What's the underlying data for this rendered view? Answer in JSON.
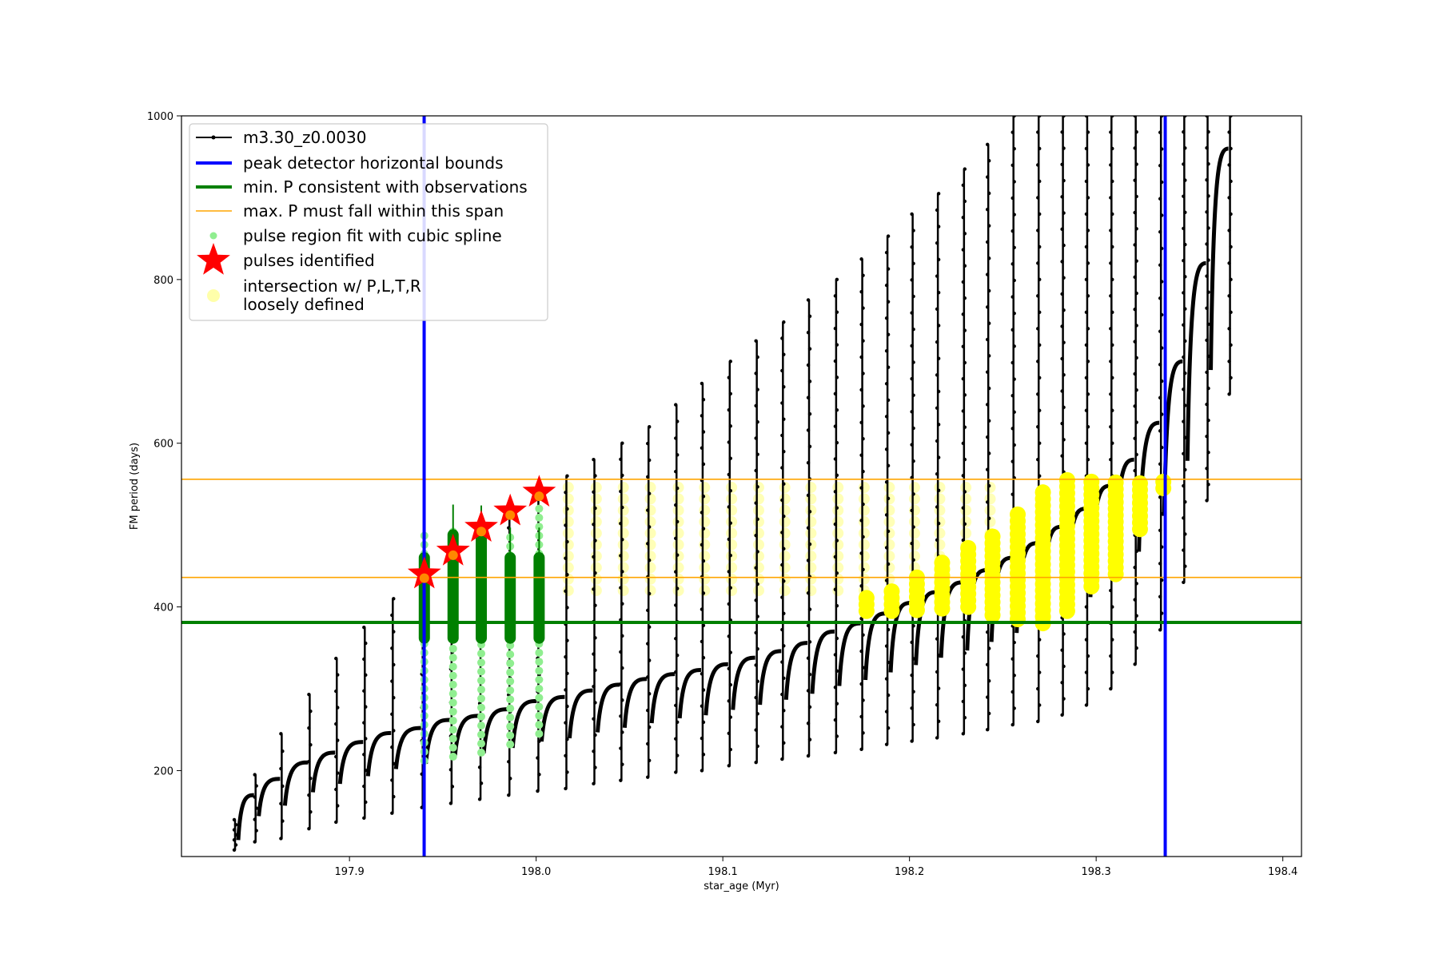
{
  "chart_data": {
    "type": "scatter",
    "title": "",
    "xlabel": "star_age (Myr)",
    "ylabel": "FM period (days)",
    "xlim": [
      197.81,
      198.41
    ],
    "ylim": [
      95,
      1000
    ],
    "xticks": [
      197.9,
      198.0,
      198.1,
      198.2,
      198.3,
      198.4
    ],
    "xtick_labels": [
      "197.9",
      "198.0",
      "198.1",
      "198.2",
      "198.3",
      "198.4"
    ],
    "yticks": [
      200,
      400,
      600,
      800,
      1000
    ],
    "ytick_labels": [
      "200",
      "400",
      "600",
      "800",
      "1000"
    ],
    "grid": false,
    "legend_position": "upper-left",
    "legend": [
      {
        "label": "m3.30_z0.0030",
        "marker": "line-dot",
        "color": "#000000"
      },
      {
        "label": "peak detector horizontal bounds",
        "marker": "line-thick",
        "color": "#0000ff"
      },
      {
        "label": "min. P consistent with observations",
        "marker": "line-thick",
        "color": "#008000"
      },
      {
        "label": "max. P must fall within this span",
        "marker": "line-thin",
        "color": "#ffa500"
      },
      {
        "label": "pulse region fit with cubic spline",
        "marker": "dot",
        "color": "#90ee90"
      },
      {
        "label": "pulses identified",
        "marker": "star",
        "color": "#ff0000"
      },
      {
        "label": "intersection w/ P,L,T,R",
        "label2": "loosely defined",
        "marker": "circle",
        "color": "#ffffaa"
      }
    ],
    "vertical_lines": {
      "name": "peak detector horizontal bounds",
      "x": [
        197.94,
        198.337
      ],
      "color": "#0000ff"
    },
    "horizontal_lines": [
      {
        "name": "min. P consistent with observations",
        "y": 381,
        "color": "#008000"
      },
      {
        "name": "max. P must fall within this span",
        "y": 436,
        "color": "#ffa500"
      },
      {
        "name": "max. P must fall within this span",
        "y": 556,
        "color": "#ffa500"
      }
    ],
    "stars": {
      "name": "pulses identified",
      "color": "#ff0000",
      "x": [
        197.9401,
        197.9555,
        197.9706,
        197.9861,
        198.0016
      ],
      "y": [
        440,
        468,
        497,
        517,
        540
      ]
    },
    "track": {
      "name": "m3.30_z0.0030",
      "color": "#000000",
      "pulses": [
        {
          "x": 197.8387,
          "ymin": 103,
          "ymax": 140,
          "base": 125
        },
        {
          "x": 197.8497,
          "ymin": 113,
          "ymax": 195,
          "base": 170
        },
        {
          "x": 197.8637,
          "ymin": 117,
          "ymax": 245,
          "base": 190
        },
        {
          "x": 197.8787,
          "ymin": 129,
          "ymax": 293,
          "base": 210
        },
        {
          "x": 197.8932,
          "ymin": 137,
          "ymax": 337,
          "base": 222
        },
        {
          "x": 197.9082,
          "ymin": 142,
          "ymax": 375,
          "base": 235
        },
        {
          "x": 197.9232,
          "ymin": 148,
          "ymax": 410,
          "base": 246
        },
        {
          "x": 197.9392,
          "ymin": 155,
          "ymax": 440,
          "base": 252
        },
        {
          "x": 197.9547,
          "ymin": 160,
          "ymax": 468,
          "base": 262
        },
        {
          "x": 197.9702,
          "ymin": 165,
          "ymax": 497,
          "base": 267
        },
        {
          "x": 197.9857,
          "ymin": 170,
          "ymax": 517,
          "base": 275
        },
        {
          "x": 198.0012,
          "ymin": 175,
          "ymax": 540,
          "base": 285
        },
        {
          "x": 198.0162,
          "ymin": 178,
          "ymax": 560,
          "base": 290
        },
        {
          "x": 198.0312,
          "ymin": 184,
          "ymax": 580,
          "base": 298
        },
        {
          "x": 198.0457,
          "ymin": 188,
          "ymax": 600,
          "base": 305
        },
        {
          "x": 198.0602,
          "ymin": 192,
          "ymax": 620,
          "base": 312
        },
        {
          "x": 198.0752,
          "ymin": 198,
          "ymax": 647,
          "base": 318
        },
        {
          "x": 198.0892,
          "ymin": 200,
          "ymax": 673,
          "base": 323
        },
        {
          "x": 198.1037,
          "ymin": 206,
          "ymax": 700,
          "base": 330
        },
        {
          "x": 198.1182,
          "ymin": 210,
          "ymax": 725,
          "base": 338
        },
        {
          "x": 198.1322,
          "ymin": 214,
          "ymax": 748,
          "base": 346
        },
        {
          "x": 198.1462,
          "ymin": 218,
          "ymax": 775,
          "base": 356
        },
        {
          "x": 198.1607,
          "ymin": 222,
          "ymax": 800,
          "base": 370
        },
        {
          "x": 198.1747,
          "ymin": 226,
          "ymax": 825,
          "base": 380
        },
        {
          "x": 198.1882,
          "ymin": 232,
          "ymax": 853,
          "base": 392
        },
        {
          "x": 198.2017,
          "ymin": 236,
          "ymax": 880,
          "base": 405
        },
        {
          "x": 198.2152,
          "ymin": 240,
          "ymax": 905,
          "base": 418
        },
        {
          "x": 198.2292,
          "ymin": 245,
          "ymax": 935,
          "base": 430
        },
        {
          "x": 198.2422,
          "ymin": 250,
          "ymax": 965,
          "base": 445
        },
        {
          "x": 198.2557,
          "ymin": 256,
          "ymax": 1000,
          "base": 460
        },
        {
          "x": 198.2692,
          "ymin": 260,
          "ymax": 1000,
          "base": 478
        },
        {
          "x": 198.2822,
          "ymin": 268,
          "ymax": 1000,
          "base": 498
        },
        {
          "x": 198.2952,
          "ymin": 280,
          "ymax": 1000,
          "base": 520
        },
        {
          "x": 198.3082,
          "ymin": 300,
          "ymax": 1000,
          "base": 548
        },
        {
          "x": 198.3212,
          "ymin": 330,
          "ymax": 1000,
          "base": 580
        },
        {
          "x": 198.3347,
          "ymin": 372,
          "ymax": 1000,
          "base": 625
        },
        {
          "x": 198.3472,
          "ymin": 430,
          "ymax": 1000,
          "base": 700
        },
        {
          "x": 198.3597,
          "ymin": 530,
          "ymax": 1000,
          "base": 820
        },
        {
          "x": 198.3717,
          "ymin": 660,
          "ymax": 1000,
          "base": 960
        }
      ]
    },
    "spline_fit": {
      "name": "pulse region fit with cubic spline",
      "color": "#90ee90",
      "x": [
        197.9401,
        197.9555,
        197.9706,
        197.9861,
        198.0016
      ],
      "ymin": [
        212,
        217,
        222,
        232,
        245
      ],
      "ymax": [
        495,
        495,
        495,
        495,
        525
      ]
    },
    "green_bars": {
      "name": "pulses identified",
      "color": "#008000",
      "x": [
        197.9401,
        197.9555,
        197.9706,
        197.9861,
        198.0016
      ],
      "ymin": [
        355,
        355,
        355,
        355,
        355
      ],
      "ymax": [
        497,
        525,
        524,
        497,
        497
      ]
    },
    "intersection": {
      "name": "intersection w/ P,L,T,R loosely defined",
      "color": "#ffff00",
      "light_color": "#ffff99",
      "light_columns": {
        "x": [
          198.0172,
          198.0322,
          198.0467,
          198.0612,
          198.0762,
          198.0902,
          198.1047,
          198.1192,
          198.1332,
          198.1472,
          198.1617,
          198.1757,
          198.1892,
          198.2027,
          198.2162,
          198.2302,
          198.2432
        ],
        "ymin": 420,
        "ymax": 556
      },
      "bright_columns": {
        "x": [
          198.1757,
          198.1892,
          198.2027,
          198.2162,
          198.2302,
          198.2432,
          198.2567,
          198.2702,
          198.2832,
          198.2962,
          198.3092,
          198.3222,
          198.3347
        ],
        "ymin": [
          395,
          395,
          396,
          398,
          400,
          390,
          385,
          380,
          395,
          425,
          440,
          495,
          545
        ],
        "ymax": [
          415,
          425,
          440,
          455,
          472,
          492,
          515,
          545,
          556,
          556,
          556,
          556,
          556
        ]
      }
    }
  }
}
